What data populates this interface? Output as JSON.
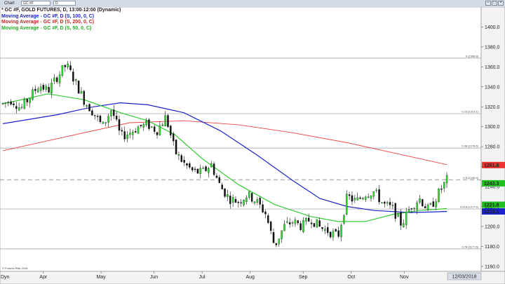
{
  "window": {
    "app_label": "Chart",
    "symbol_value": "GC #F",
    "period_value": "D"
  },
  "legend": {
    "main": "* GC #F, GOLD FUTURES, D, 13:00-12:00 (Dynamic)",
    "ma100": "Moving Average - GC #F, D (S, 100, 0, C)",
    "ma200": "Moving Average - GC #F, D (S, 200, 0, C)",
    "ma50": "Moving Average - GC #F, D (S, 50, 0, C)"
  },
  "colors": {
    "up": "#33dd33",
    "down": "#111111",
    "ma100": "#1a24c8",
    "ma200": "#ee4444",
    "ma50": "#33cc33",
    "badge_price": "#20c020",
    "badge_ma200": "#ee3333",
    "badge_ma100": "#1a24c8"
  },
  "chart_data": {
    "type": "candlestick",
    "ylim": [
      1155,
      1420
    ],
    "y_ticks": [
      1160,
      1180,
      1200,
      1220,
      1240,
      1260,
      1280,
      1300,
      1320,
      1340,
      1360,
      1380,
      1400
    ],
    "x_labels": [
      {
        "label": "Apr",
        "pos": 0.09
      },
      {
        "label": "May",
        "pos": 0.21
      },
      {
        "label": "Jun",
        "pos": 0.32
      },
      {
        "label": "Jul",
        "pos": 0.42
      },
      {
        "label": "Aug",
        "pos": 0.52
      },
      {
        "label": "Sep",
        "pos": 0.63
      },
      {
        "label": "Oct",
        "pos": 0.73
      },
      {
        "label": "Nov",
        "pos": 0.84
      }
    ],
    "last_date_label": "12/03/2018",
    "bottom_left_label": "Dyn",
    "series_ohlc": [
      {
        "t": 0.0,
        "c": 1323
      },
      {
        "t": 0.02,
        "c": 1327
      },
      {
        "t": 0.04,
        "c": 1318
      },
      {
        "t": 0.06,
        "c": 1330
      },
      {
        "t": 0.08,
        "c": 1342
      },
      {
        "t": 0.1,
        "c": 1336
      },
      {
        "t": 0.12,
        "c": 1350
      },
      {
        "t": 0.14,
        "c": 1362
      },
      {
        "t": 0.16,
        "c": 1345
      },
      {
        "t": 0.18,
        "c": 1326
      },
      {
        "t": 0.2,
        "c": 1314
      },
      {
        "t": 0.22,
        "c": 1300
      },
      {
        "t": 0.24,
        "c": 1318
      },
      {
        "t": 0.26,
        "c": 1290
      },
      {
        "t": 0.28,
        "c": 1294
      },
      {
        "t": 0.3,
        "c": 1300
      },
      {
        "t": 0.32,
        "c": 1302
      },
      {
        "t": 0.34,
        "c": 1296
      },
      {
        "t": 0.36,
        "c": 1310
      },
      {
        "t": 0.38,
        "c": 1275
      },
      {
        "t": 0.4,
        "c": 1263
      },
      {
        "t": 0.42,
        "c": 1255
      },
      {
        "t": 0.44,
        "c": 1254
      },
      {
        "t": 0.46,
        "c": 1262
      },
      {
        "t": 0.48,
        "c": 1240
      },
      {
        "t": 0.5,
        "c": 1228
      },
      {
        "t": 0.52,
        "c": 1225
      },
      {
        "t": 0.54,
        "c": 1232
      },
      {
        "t": 0.56,
        "c": 1225
      },
      {
        "t": 0.58,
        "c": 1213
      },
      {
        "t": 0.6,
        "c": 1180
      },
      {
        "t": 0.62,
        "c": 1200
      },
      {
        "t": 0.64,
        "c": 1205
      },
      {
        "t": 0.66,
        "c": 1200
      },
      {
        "t": 0.68,
        "c": 1208
      },
      {
        "t": 0.7,
        "c": 1199
      },
      {
        "t": 0.72,
        "c": 1195
      },
      {
        "t": 0.74,
        "c": 1190
      },
      {
        "t": 0.76,
        "c": 1230
      },
      {
        "t": 0.78,
        "c": 1225
      },
      {
        "t": 0.8,
        "c": 1233
      },
      {
        "t": 0.82,
        "c": 1235
      },
      {
        "t": 0.84,
        "c": 1222
      },
      {
        "t": 0.86,
        "c": 1218
      },
      {
        "t": 0.88,
        "c": 1202
      },
      {
        "t": 0.9,
        "c": 1220
      },
      {
        "t": 0.92,
        "c": 1228
      },
      {
        "t": 0.94,
        "c": 1216
      },
      {
        "t": 0.96,
        "c": 1232
      },
      {
        "t": 0.98,
        "c": 1247
      }
    ],
    "ma50": [
      {
        "t": 0.0,
        "v": 1323
      },
      {
        "t": 0.1,
        "v": 1333
      },
      {
        "t": 0.18,
        "v": 1327
      },
      {
        "t": 0.26,
        "v": 1314
      },
      {
        "t": 0.32,
        "v": 1306
      },
      {
        "t": 0.38,
        "v": 1292
      },
      {
        "t": 0.44,
        "v": 1268
      },
      {
        "t": 0.52,
        "v": 1242
      },
      {
        "t": 0.6,
        "v": 1222
      },
      {
        "t": 0.68,
        "v": 1210
      },
      {
        "t": 0.74,
        "v": 1205
      },
      {
        "t": 0.8,
        "v": 1205
      },
      {
        "t": 0.86,
        "v": 1212
      },
      {
        "t": 0.92,
        "v": 1216
      },
      {
        "t": 0.98,
        "v": 1218
      }
    ],
    "ma100": [
      {
        "t": 0.0,
        "v": 1303
      },
      {
        "t": 0.12,
        "v": 1312
      },
      {
        "t": 0.2,
        "v": 1320
      },
      {
        "t": 0.26,
        "v": 1324
      },
      {
        "t": 0.32,
        "v": 1322
      },
      {
        "t": 0.4,
        "v": 1314
      },
      {
        "t": 0.48,
        "v": 1296
      },
      {
        "t": 0.56,
        "v": 1272
      },
      {
        "t": 0.64,
        "v": 1246
      },
      {
        "t": 0.7,
        "v": 1228
      },
      {
        "t": 0.76,
        "v": 1220
      },
      {
        "t": 0.82,
        "v": 1216
      },
      {
        "t": 0.9,
        "v": 1214
      },
      {
        "t": 0.98,
        "v": 1215
      }
    ],
    "ma200": [
      {
        "t": 0.0,
        "v": 1276
      },
      {
        "t": 0.14,
        "v": 1290
      },
      {
        "t": 0.28,
        "v": 1304
      },
      {
        "t": 0.4,
        "v": 1306
      },
      {
        "t": 0.52,
        "v": 1302
      },
      {
        "t": 0.64,
        "v": 1294
      },
      {
        "t": 0.76,
        "v": 1284
      },
      {
        "t": 0.86,
        "v": 1274
      },
      {
        "t": 0.98,
        "v": 1262
      }
    ],
    "fib_levels": [
      {
        "label": "0 (1368.8)",
        "value": 1368.8
      },
      {
        "label": "0.23 (1313.1)",
        "value": 1313.1
      },
      {
        "label": "0.38 (1278.6)",
        "value": 1278.6
      },
      {
        "label": "0.5 (1246.9)",
        "value": 1246.9
      },
      {
        "label": "0.618 (1217.5)",
        "value": 1217.5
      },
      {
        "label": "0.78 (1177.6)",
        "value": 1177.6
      }
    ],
    "price_badges": [
      {
        "label": "1261.6",
        "value": 1261.6,
        "color": "#ee3333"
      },
      {
        "label": "1243.3",
        "value": 1243.3,
        "color": "#20c020"
      },
      {
        "label": "1221.8",
        "value": 1221.8,
        "color": "#20c020"
      },
      {
        "label": "1215.1",
        "value": 1215.1,
        "color": "#1a24c8"
      }
    ],
    "dashed_line_value": 1246.9,
    "watermark": "© Futures Risk 2018"
  }
}
